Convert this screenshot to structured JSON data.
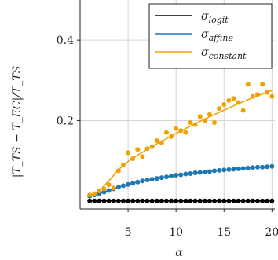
{
  "chart_data": {
    "type": "line",
    "title": "",
    "xlabel": "α",
    "ylabel": "|T_TS − T_EC|/T_TS",
    "xlim": [
      0,
      20.3
    ],
    "ylim": [
      -0.02,
      0.5
    ],
    "grid": true,
    "legend_position": "top-right",
    "x_ticks": [
      5,
      10,
      15,
      20
    ],
    "x_tick_labels": [
      "5",
      "10",
      "15",
      "20"
    ],
    "y_ticks": [
      0.2,
      0.4
    ],
    "y_tick_labels": [
      "0.2",
      "0.4"
    ],
    "legend": [
      {
        "base": "σ",
        "sub": "logit",
        "color": "#000000",
        "series": "logit"
      },
      {
        "base": "σ",
        "sub": "affine",
        "color": "#1f77b4",
        "series": "affine"
      },
      {
        "base": "σ",
        "sub": "constant",
        "color": "#f0a000",
        "series": "constant"
      }
    ],
    "series": [
      {
        "key": "logit",
        "color": "#000000",
        "x": [
          1.0,
          1.5,
          2.0,
          2.5,
          3.0,
          3.5,
          4.0,
          4.5,
          5.0,
          5.5,
          6.0,
          6.5,
          7.0,
          7.5,
          8.0,
          8.5,
          9.0,
          9.5,
          10.0,
          10.5,
          11.0,
          11.5,
          12.0,
          12.5,
          13.0,
          13.5,
          14.0,
          14.5,
          15.0,
          15.5,
          16.0,
          16.5,
          17.0,
          17.5,
          18.0,
          18.5,
          19.0,
          19.5,
          20.0
        ],
        "values": [
          0.0,
          0.0,
          0.0,
          0.0,
          0.0,
          0.0,
          0.0,
          0.0,
          0.0,
          0.0,
          0.0,
          0.0,
          0.0,
          0.0,
          0.0,
          0.0,
          0.0,
          0.0,
          0.0,
          0.0,
          0.0,
          0.0,
          0.0,
          0.0,
          0.0,
          0.0,
          0.0,
          0.0,
          0.0,
          0.0,
          0.0,
          0.0,
          0.0,
          0.0,
          0.0,
          0.0,
          0.0,
          0.0,
          0.0
        ]
      },
      {
        "key": "affine",
        "color": "#1f77b4",
        "x": [
          1.0,
          1.5,
          2.0,
          2.5,
          3.0,
          3.5,
          4.0,
          4.5,
          5.0,
          5.5,
          6.0,
          6.5,
          7.0,
          7.5,
          8.0,
          8.5,
          9.0,
          9.5,
          10.0,
          10.5,
          11.0,
          11.5,
          12.0,
          12.5,
          13.0,
          13.5,
          14.0,
          14.5,
          15.0,
          15.5,
          16.0,
          16.5,
          17.0,
          17.5,
          18.0,
          18.5,
          19.0,
          19.5,
          20.0
        ],
        "values": [
          0.012,
          0.015,
          0.018,
          0.022,
          0.026,
          0.03,
          0.034,
          0.038,
          0.041,
          0.044,
          0.047,
          0.05,
          0.052,
          0.054,
          0.056,
          0.058,
          0.06,
          0.062,
          0.064,
          0.065,
          0.067,
          0.068,
          0.07,
          0.071,
          0.072,
          0.073,
          0.075,
          0.076,
          0.077,
          0.078,
          0.079,
          0.08,
          0.081,
          0.082,
          0.083,
          0.084,
          0.084,
          0.085,
          0.086
        ]
      },
      {
        "key": "constant",
        "color": "#f0a000",
        "x": [
          1.0,
          1.5,
          2.0,
          2.5,
          3.0,
          3.5,
          4.0,
          4.5,
          5.0,
          5.5,
          6.0,
          6.5,
          7.0,
          7.5,
          8.0,
          8.5,
          9.0,
          9.5,
          10.0,
          10.5,
          11.0,
          11.5,
          12.0,
          12.5,
          13.0,
          13.5,
          14.0,
          14.5,
          15.0,
          15.5,
          16.0,
          16.5,
          17.0,
          17.5,
          18.0,
          18.5,
          19.0,
          19.5,
          20.0
        ],
        "values": [
          0.015,
          0.018,
          0.025,
          0.03,
          0.04,
          0.032,
          0.075,
          0.09,
          0.12,
          0.105,
          0.128,
          0.11,
          0.13,
          0.135,
          0.15,
          0.145,
          0.17,
          0.16,
          0.18,
          0.175,
          0.17,
          0.195,
          0.19,
          0.21,
          0.2,
          0.215,
          0.195,
          0.23,
          0.24,
          0.25,
          0.255,
          0.245,
          0.225,
          0.29,
          0.26,
          0.265,
          0.29,
          0.27,
          0.26
        ],
        "trend_x": [
          1,
          2,
          3,
          4,
          5,
          6,
          7,
          8,
          9,
          10,
          11,
          12,
          13,
          14,
          15,
          16,
          17,
          18,
          19,
          20
        ],
        "trend_values": [
          0.012,
          0.025,
          0.05,
          0.078,
          0.098,
          0.114,
          0.128,
          0.142,
          0.155,
          0.168,
          0.18,
          0.192,
          0.204,
          0.215,
          0.226,
          0.237,
          0.247,
          0.257,
          0.266,
          0.275
        ]
      }
    ]
  }
}
